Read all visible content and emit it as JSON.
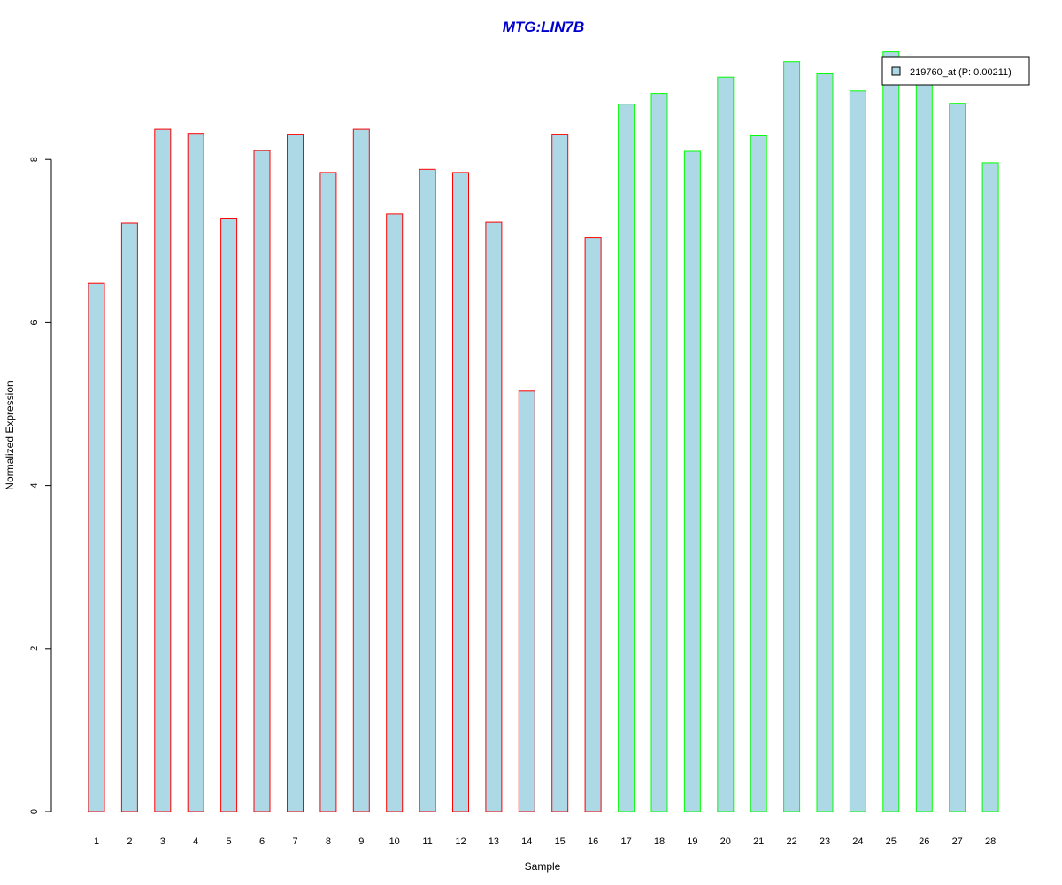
{
  "chart_data": {
    "type": "bar",
    "title": "MTG:LIN7B",
    "xlabel": "Sample",
    "ylabel": "Normalized Expression",
    "ylim": [
      0,
      9.3
    ],
    "yticks": [
      0,
      2,
      4,
      6,
      8
    ],
    "categories": [
      "1",
      "2",
      "3",
      "4",
      "5",
      "6",
      "7",
      "8",
      "9",
      "10",
      "11",
      "12",
      "13",
      "14",
      "15",
      "16",
      "17",
      "18",
      "19",
      "20",
      "21",
      "22",
      "23",
      "24",
      "25",
      "26",
      "27",
      "28"
    ],
    "series": [
      {
        "name": "219760_at (P: 0.00211)",
        "values": [
          6.48,
          7.22,
          8.37,
          8.32,
          7.28,
          8.11,
          8.31,
          7.84,
          8.37,
          7.33,
          7.88,
          7.84,
          7.23,
          5.16,
          8.31,
          7.04,
          8.68,
          8.81,
          8.1,
          9.01,
          8.29,
          9.2,
          9.05,
          8.84,
          9.32,
          9.02,
          8.69,
          7.96
        ],
        "groups": [
          "a",
          "a",
          "a",
          "a",
          "a",
          "a",
          "a",
          "a",
          "a",
          "a",
          "a",
          "a",
          "a",
          "a",
          "a",
          "a",
          "b",
          "b",
          "b",
          "b",
          "b",
          "b",
          "b",
          "b",
          "b",
          "b",
          "b",
          "b"
        ]
      }
    ],
    "legend_position": "top-right",
    "grid": false,
    "colors": {
      "fill": "#add8e6",
      "group_a_border": "#ff0000",
      "group_b_border": "#00ff00",
      "title": "#0000cd"
    }
  }
}
